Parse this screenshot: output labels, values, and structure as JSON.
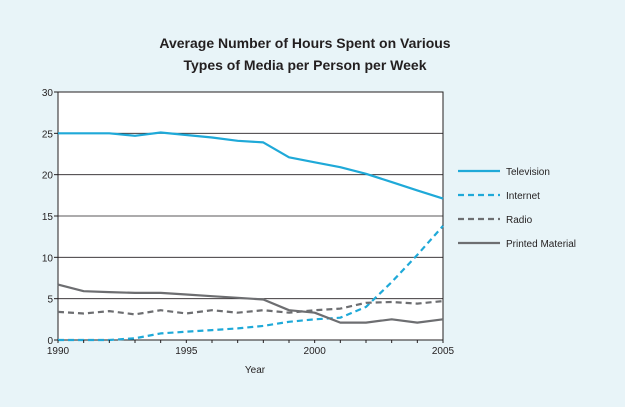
{
  "chart_data": {
    "type": "line",
    "title": "Average Number of Hours Spent on Various",
    "subtitle": "Types of Media per Person per Week",
    "xlabel": "Year",
    "ylabel": "",
    "xlim": [
      1990,
      2005
    ],
    "ylim": [
      0,
      30
    ],
    "x_ticks": [
      1990,
      1995,
      2000,
      2005
    ],
    "y_ticks": [
      0,
      5,
      10,
      15,
      20,
      25,
      30
    ],
    "grid": "horizontal",
    "legend_position": "right",
    "x": [
      1990,
      1991,
      1992,
      1993,
      1994,
      1995,
      1996,
      1997,
      1998,
      1999,
      2000,
      2001,
      2002,
      2003,
      2004,
      2005
    ],
    "series": [
      {
        "name": "Television",
        "color": "#1fa9d8",
        "style": "solid",
        "values": [
          25.0,
          25.0,
          25.0,
          24.7,
          25.1,
          24.8,
          24.5,
          24.1,
          23.9,
          22.1,
          21.5,
          20.9,
          20.1,
          19.1,
          18.1,
          17.1
        ]
      },
      {
        "name": "Internet",
        "color": "#1fa9d8",
        "style": "dashed",
        "values": [
          0.0,
          0.0,
          0.0,
          0.2,
          0.8,
          1.0,
          1.2,
          1.4,
          1.7,
          2.2,
          2.5,
          2.7,
          4.0,
          7.0,
          10.3,
          13.8
        ]
      },
      {
        "name": "Radio",
        "color": "#6d6e71",
        "style": "dashed",
        "values": [
          3.4,
          3.2,
          3.5,
          3.1,
          3.6,
          3.2,
          3.6,
          3.3,
          3.6,
          3.3,
          3.6,
          3.8,
          4.5,
          4.6,
          4.4,
          4.7
        ]
      },
      {
        "name": "Printed Material",
        "color": "#6d6e71",
        "style": "solid",
        "values": [
          6.7,
          5.9,
          5.8,
          5.7,
          5.7,
          5.5,
          5.3,
          5.1,
          4.9,
          3.6,
          3.3,
          2.1,
          2.1,
          2.5,
          2.1,
          2.5
        ]
      }
    ]
  }
}
